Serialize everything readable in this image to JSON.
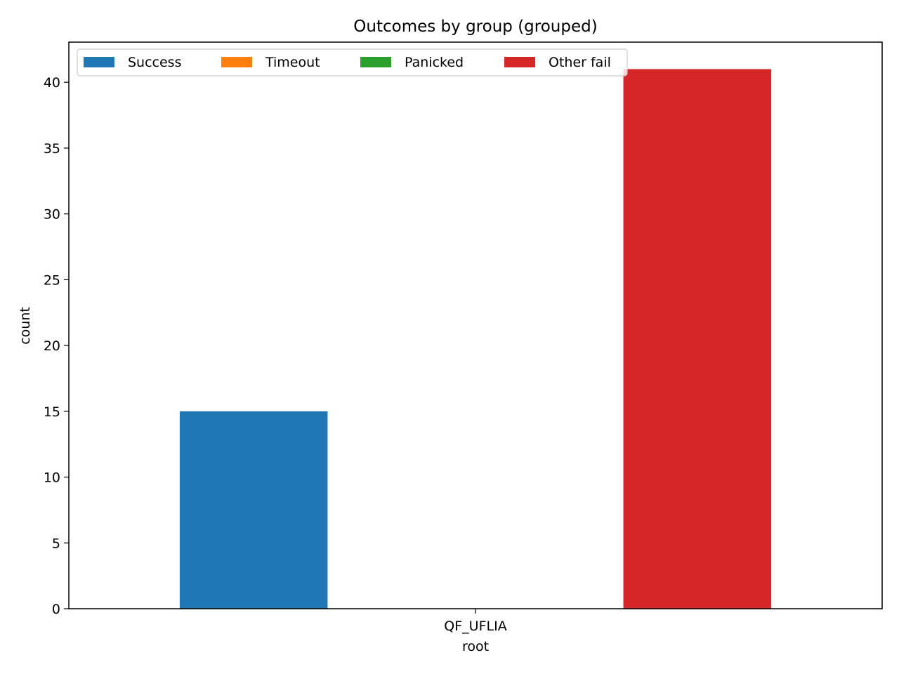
{
  "chart_data": {
    "type": "bar",
    "title": "Outcomes by group (grouped)",
    "xlabel": "root",
    "ylabel": "count",
    "categories": [
      "QF_UFLIA"
    ],
    "series": [
      {
        "name": "Success",
        "values": [
          15
        ],
        "color": "#1f77b4"
      },
      {
        "name": "Timeout",
        "values": [
          0
        ],
        "color": "#ff7f0e"
      },
      {
        "name": "Panicked",
        "values": [
          0
        ],
        "color": "#2ca02c"
      },
      {
        "name": "Other fail",
        "values": [
          41
        ],
        "color": "#d62728"
      }
    ],
    "ylim": [
      0,
      43.05
    ],
    "yticks": [
      0,
      5,
      10,
      15,
      20,
      25,
      30,
      35,
      40
    ],
    "grid": false,
    "legend_position": "top-left",
    "legend_columns": 4
  }
}
